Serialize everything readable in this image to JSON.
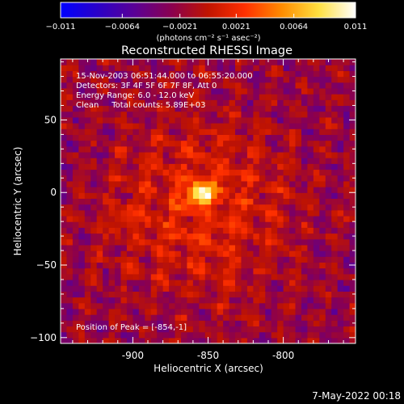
{
  "chart_data": {
    "type": "heatmap",
    "title": "Reconstructed RHESSI Image",
    "xlabel": "Heliocentric X (arcsec)",
    "ylabel": "Heliocentric Y (arcsec)",
    "xlim": [
      -948,
      -752
    ],
    "ylim": [
      -104,
      92
    ],
    "x_ticks": [
      -900,
      -850,
      -800
    ],
    "x_tick_labels": [
      "-900",
      "-850",
      "-800"
    ],
    "y_ticks": [
      50,
      0,
      -50,
      -100
    ],
    "y_tick_labels": [
      "50",
      "0",
      "−50",
      "−100"
    ],
    "colorbar": {
      "min": -0.011,
      "max": 0.011,
      "ticks": [
        -0.011,
        -0.0064,
        -0.0021,
        0.0021,
        0.0064,
        0.011
      ],
      "tick_labels": [
        "−0.011",
        "−0.0064",
        "−0.0021",
        "0.0021",
        "0.0064",
        "0.011"
      ],
      "unit_label": "(photons cm⁻² s⁻¹ asec⁻²)",
      "colormap": [
        "#0000ff",
        "#2a00c8",
        "#5a0096",
        "#8a0050",
        "#c01400",
        "#ff3000",
        "#ff8c00",
        "#ffe040",
        "#ffffff"
      ]
    },
    "peak": {
      "x": -854,
      "y": -1,
      "value": 0.011
    },
    "secondary_source": {
      "x": -905,
      "y": -17,
      "value": 0.0072
    }
  },
  "annotations": [
    "15-Nov-2003 06:51:44.000 to 06:55:20.000",
    "Detectors: 3F 4F 5F 6F 7F 8F, Att 0",
    "Energy Range: 6.0 - 12.0 keV",
    "Clean     Total counts: 5.89E+03"
  ],
  "peak_label": "Position of Peak = [-854,-1]",
  "footer_date": "7-May-2022 00:18",
  "colors": {
    "background": "#000000",
    "text": "#ffffff"
  }
}
